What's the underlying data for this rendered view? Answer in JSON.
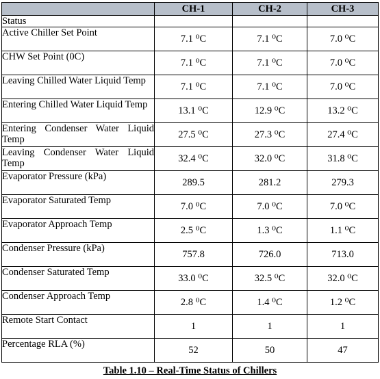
{
  "table": {
    "columns": [
      "",
      "CH-1",
      "CH-2",
      "CH-3"
    ],
    "section_label": "Status",
    "rows": [
      {
        "label": "Active Chiller Set Point",
        "values": [
          "7.1 ⁰C",
          "7.1 ⁰C",
          "7.0 ⁰C"
        ]
      },
      {
        "label": "CHW Set Point (0C)",
        "values": [
          "7.1 ⁰C",
          "7.1 ⁰C",
          "7.0 ⁰C"
        ]
      },
      {
        "label": "Leaving Chilled Water Liquid Temp",
        "values": [
          "7.1 ⁰C",
          "7.1 ⁰C",
          "7.0 ⁰C"
        ]
      },
      {
        "label": "Entering Chilled Water Liquid Temp",
        "values": [
          "13.1 ⁰C",
          "12.9 ⁰C",
          "13.2 ⁰C"
        ]
      },
      {
        "label": "Entering Condenser Water Liquid Temp",
        "values": [
          "27.5 ⁰C",
          "27.3 ⁰C",
          "27.4 ⁰C"
        ]
      },
      {
        "label": "Leaving Condenser Water Liquid Temp",
        "values": [
          "32.4 ⁰C",
          "32.0 ⁰C",
          "31.8 ⁰C"
        ]
      },
      {
        "label": "Evaporator Pressure (kPa)",
        "values": [
          "289.5",
          "281.2",
          "279.3"
        ]
      },
      {
        "label": "Evaporator Saturated Temp",
        "values": [
          "7.0 ⁰C",
          "7.0 ⁰C",
          "7.0 ⁰C"
        ]
      },
      {
        "label": "Evaporator Approach Temp",
        "values": [
          "2.5 ⁰C",
          "1.3 ⁰C",
          "1.1 ⁰C"
        ]
      },
      {
        "label": "Condenser Pressure (kPa)",
        "values": [
          "757.8",
          "726.0",
          "713.0"
        ]
      },
      {
        "label": "Condenser Saturated Temp",
        "values": [
          "33.0 ⁰C",
          "32.5 ⁰C",
          "32.0 ⁰C"
        ]
      },
      {
        "label": "Condenser Approach Temp",
        "values": [
          "2.8 ⁰C",
          "1.4 ⁰C",
          "1.2 ⁰C"
        ]
      },
      {
        "label": "Remote Start Contact",
        "values": [
          "1",
          "1",
          "1"
        ]
      },
      {
        "label": "Percentage RLA (%)",
        "values": [
          "52",
          "50",
          "47"
        ]
      }
    ]
  },
  "caption": "Table 1.10 – Real-Time Status of Chillers",
  "colors": {
    "header_background": "#b7bfca",
    "border": "#000000"
  }
}
